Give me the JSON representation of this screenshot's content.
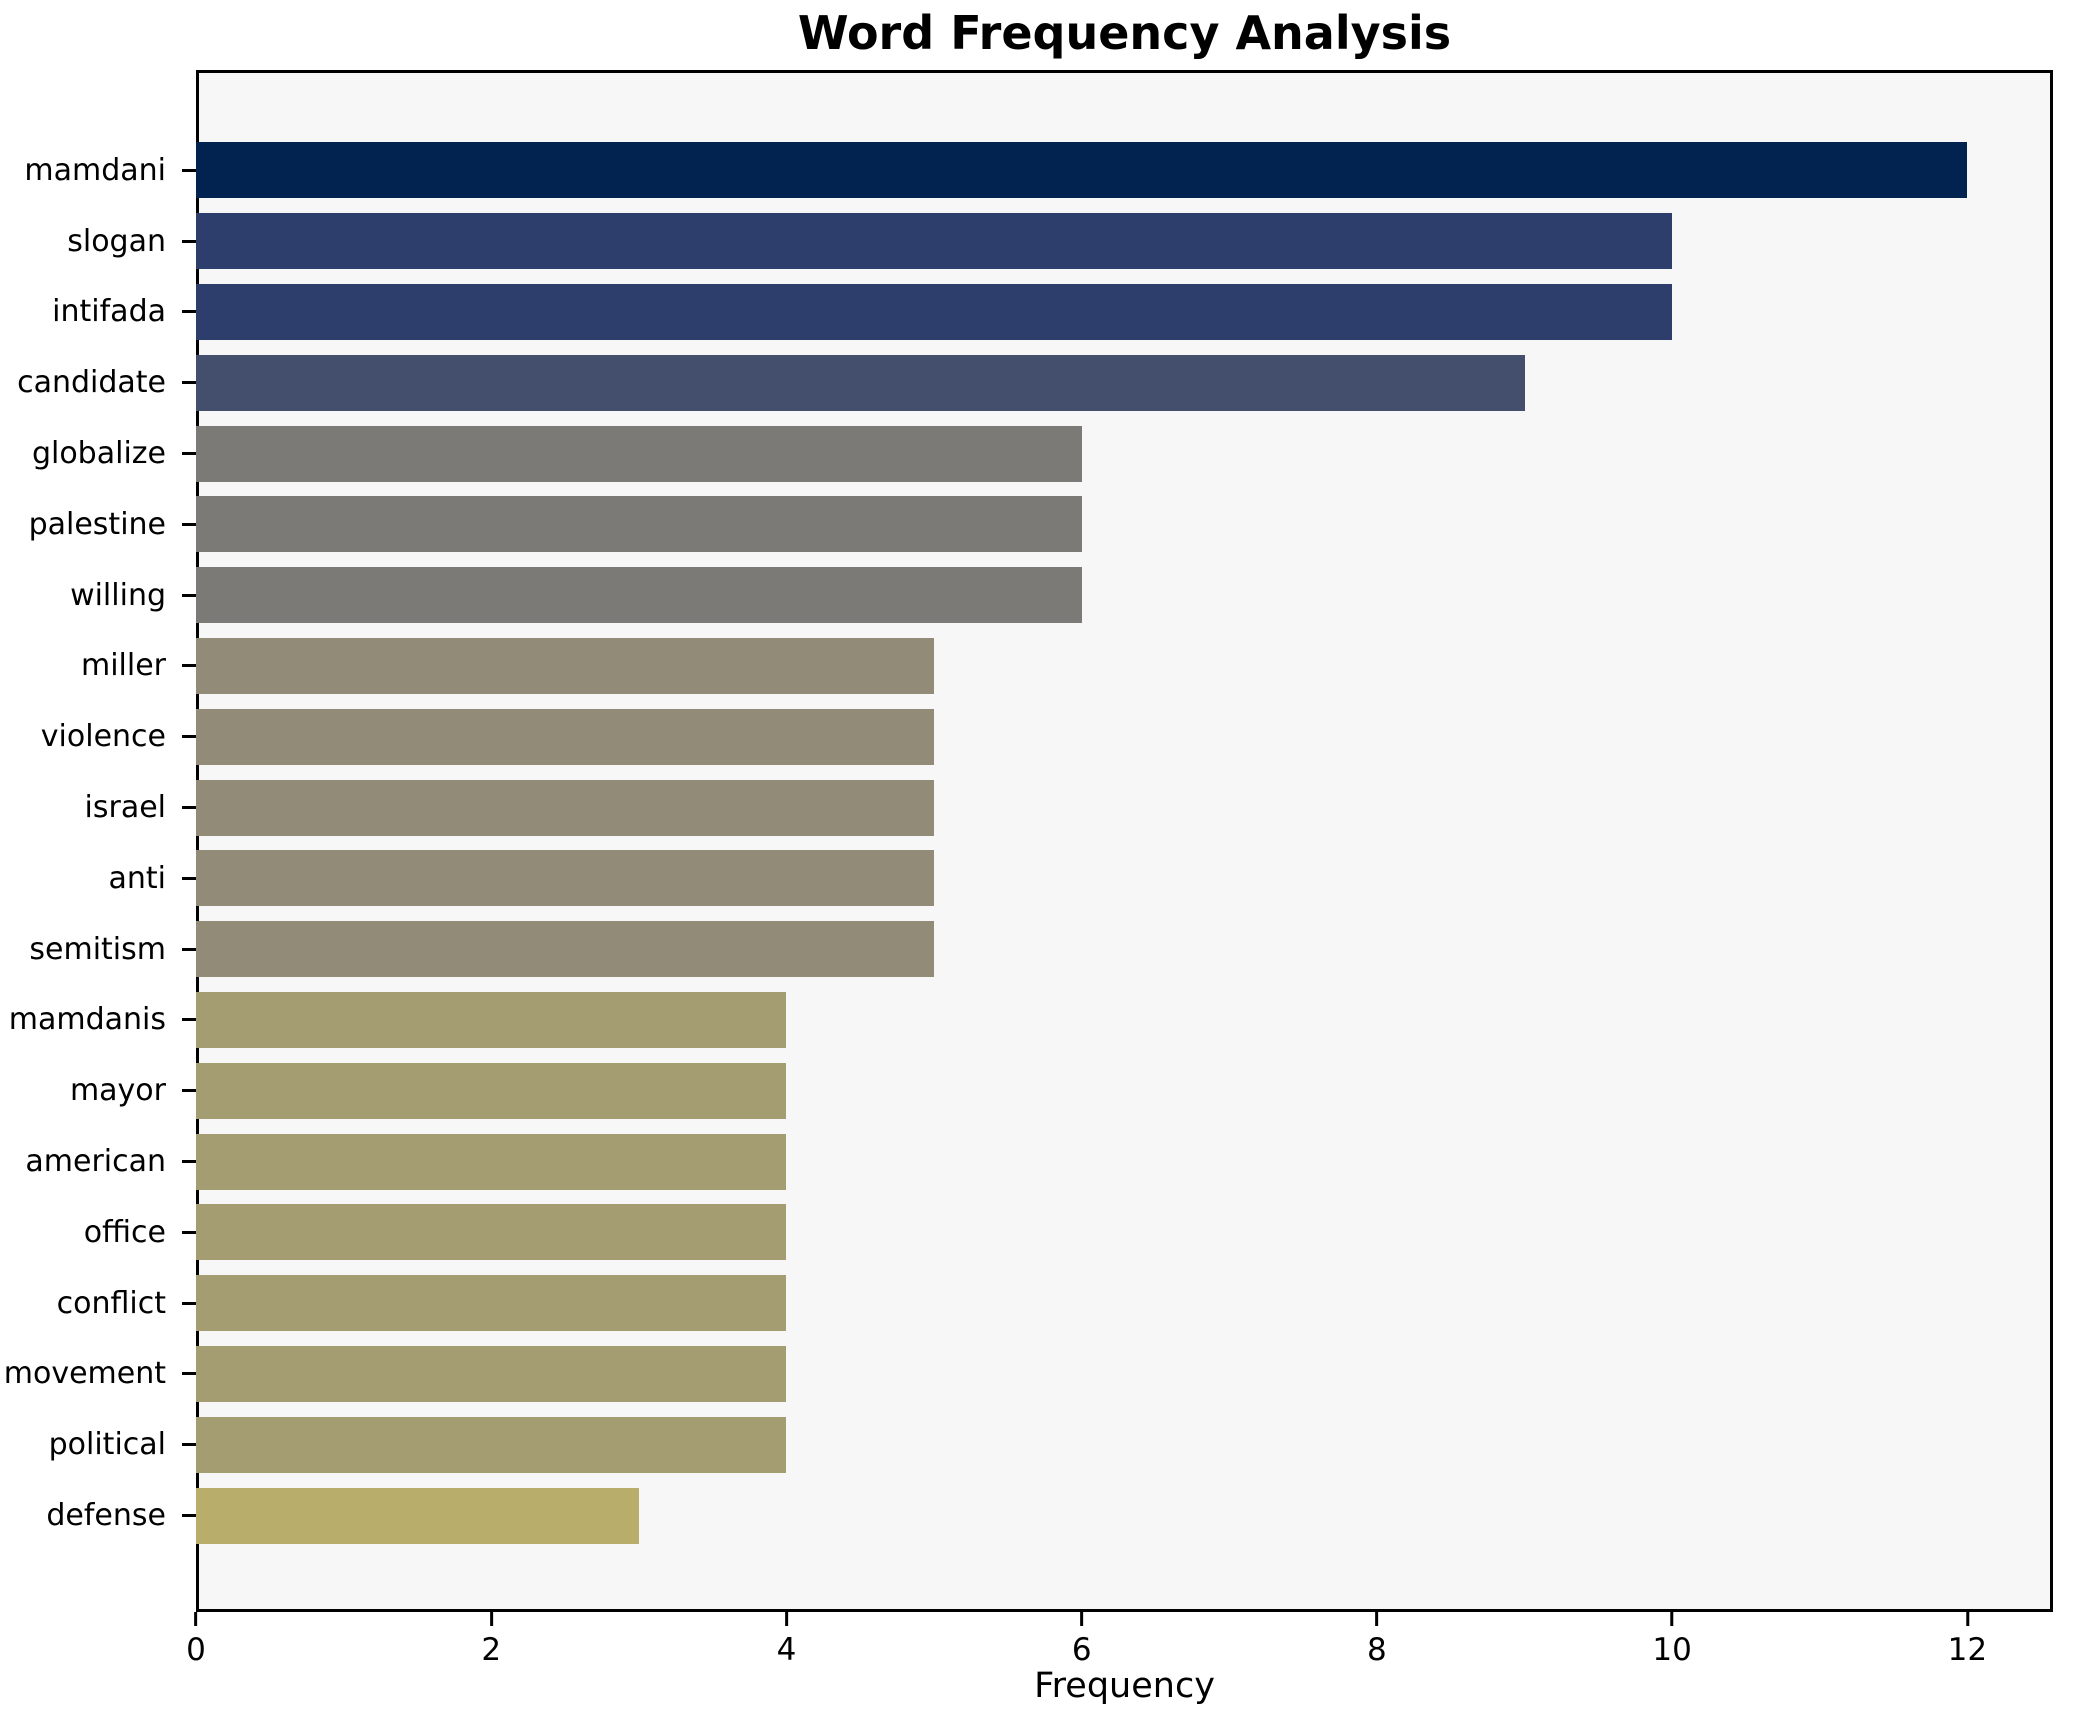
{
  "chart_data": {
    "type": "bar",
    "orientation": "horizontal",
    "title": "Word Frequency Analysis",
    "xlabel": "Frequency",
    "ylabel": "",
    "grid": false,
    "legend": "none",
    "xlim": [
      0,
      12.58
    ],
    "xticks": [
      0,
      2,
      4,
      6,
      8,
      10,
      12
    ],
    "categories": [
      "mamdani",
      "slogan",
      "intifada",
      "candidate",
      "globalize",
      "palestine",
      "willing",
      "miller",
      "violence",
      "israel",
      "anti",
      "semitism",
      "mamdanis",
      "mayor",
      "american",
      "office",
      "conflict",
      "movement",
      "political",
      "defense"
    ],
    "values": [
      12,
      10,
      10,
      9,
      6,
      6,
      6,
      5,
      5,
      5,
      5,
      5,
      4,
      4,
      4,
      4,
      4,
      4,
      4,
      3
    ],
    "bar_colors": [
      "#022350",
      "#2d3e6c",
      "#2d3e6c",
      "#434f6c",
      "#7b7a76",
      "#7b7a76",
      "#7b7a76",
      "#918b77",
      "#918b77",
      "#918b77",
      "#918b77",
      "#918b77",
      "#a49d72",
      "#a49d72",
      "#a49d72",
      "#a49d72",
      "#a49d72",
      "#a49d72",
      "#a49d72",
      "#b8ad6a"
    ],
    "colormap": "cividis",
    "plot_background": "#f7f7f7",
    "figure_background": "#ffffff",
    "axis_color": "#000000"
  }
}
